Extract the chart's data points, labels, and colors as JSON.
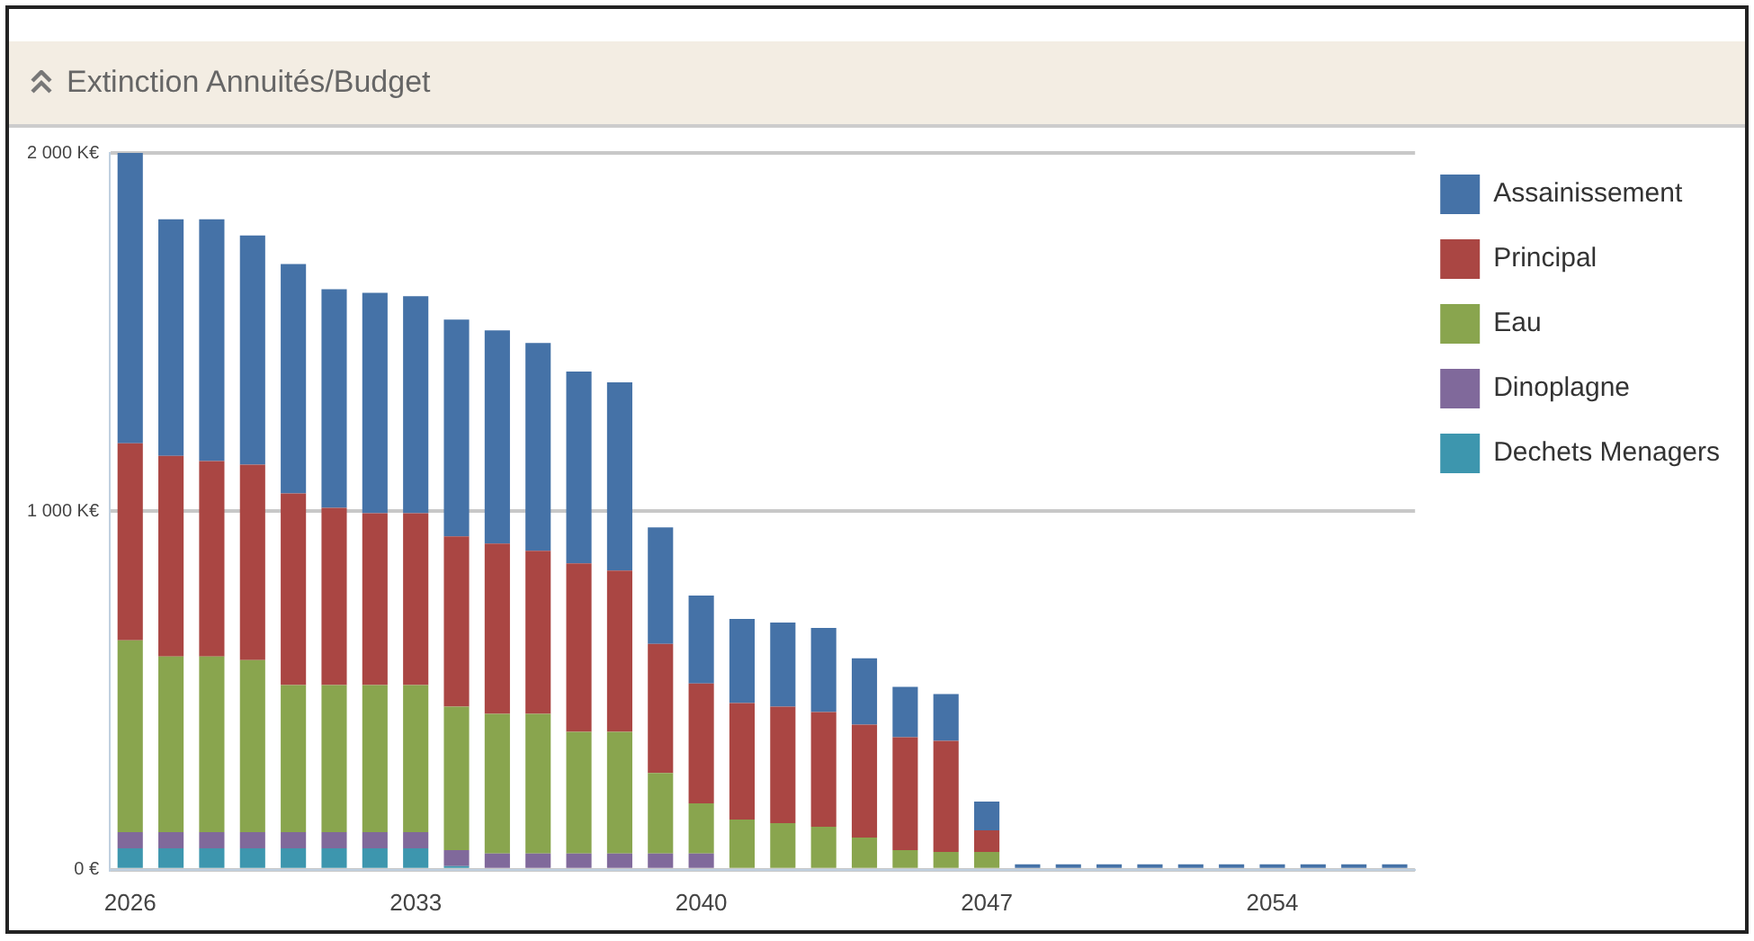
{
  "chart_data": {
    "type": "bar",
    "title": "Extinction Annuités/Budget",
    "stacked": true,
    "categories": [
      "2026",
      null,
      null,
      null,
      null,
      null,
      null,
      "2033",
      null,
      null,
      null,
      null,
      null,
      null,
      "2040",
      null,
      null,
      null,
      null,
      null,
      null,
      "2047",
      null,
      null,
      null,
      null,
      null,
      null,
      "2054",
      null,
      null,
      null
    ],
    "series": [
      {
        "name": "Dechets Menagers",
        "color": "#3d96ae",
        "values": [
          60,
          60,
          60,
          60,
          60,
          60,
          60,
          60,
          10,
          0,
          0,
          0,
          0,
          0,
          0,
          0,
          0,
          0,
          0,
          0,
          0,
          0,
          0,
          0,
          0,
          0,
          0,
          0,
          0,
          0,
          0,
          0
        ]
      },
      {
        "name": "Dinoplagne",
        "color": "#80699b",
        "values": [
          45,
          45,
          45,
          45,
          45,
          45,
          45,
          45,
          45,
          45,
          45,
          45,
          45,
          45,
          45,
          0,
          0,
          0,
          0,
          0,
          0,
          0,
          0,
          0,
          0,
          0,
          0,
          0,
          0,
          0,
          0,
          0
        ]
      },
      {
        "name": "Eau",
        "color": "#89a54e",
        "values": [
          535,
          490,
          490,
          480,
          410,
          410,
          410,
          410,
          400,
          390,
          390,
          340,
          340,
          225,
          140,
          140,
          130,
          120,
          90,
          55,
          50,
          50,
          0,
          0,
          0,
          0,
          0,
          0,
          0,
          0,
          0,
          0
        ]
      },
      {
        "name": "Principal",
        "color": "#aa4643",
        "values": [
          550,
          560,
          545,
          545,
          535,
          495,
          480,
          480,
          475,
          475,
          455,
          470,
          450,
          360,
          335,
          325,
          325,
          320,
          315,
          315,
          310,
          60,
          0,
          0,
          0,
          0,
          0,
          0,
          0,
          0,
          0,
          0
        ]
      },
      {
        "name": "Assainissement",
        "color": "#4572a7",
        "values": [
          810,
          660,
          675,
          640,
          640,
          610,
          615,
          605,
          605,
          595,
          580,
          535,
          525,
          325,
          245,
          235,
          235,
          235,
          185,
          140,
          130,
          80,
          15,
          15,
          15,
          15,
          15,
          15,
          15,
          15,
          15,
          15
        ]
      }
    ],
    "ylim": [
      0,
      2000
    ],
    "yticks": [
      {
        "value": 0,
        "label": "0 €"
      },
      {
        "value": 1000,
        "label": "1 000 K€"
      },
      {
        "value": 2000,
        "label": "2 000 K€"
      }
    ],
    "grid": "y",
    "legend": "top right"
  }
}
